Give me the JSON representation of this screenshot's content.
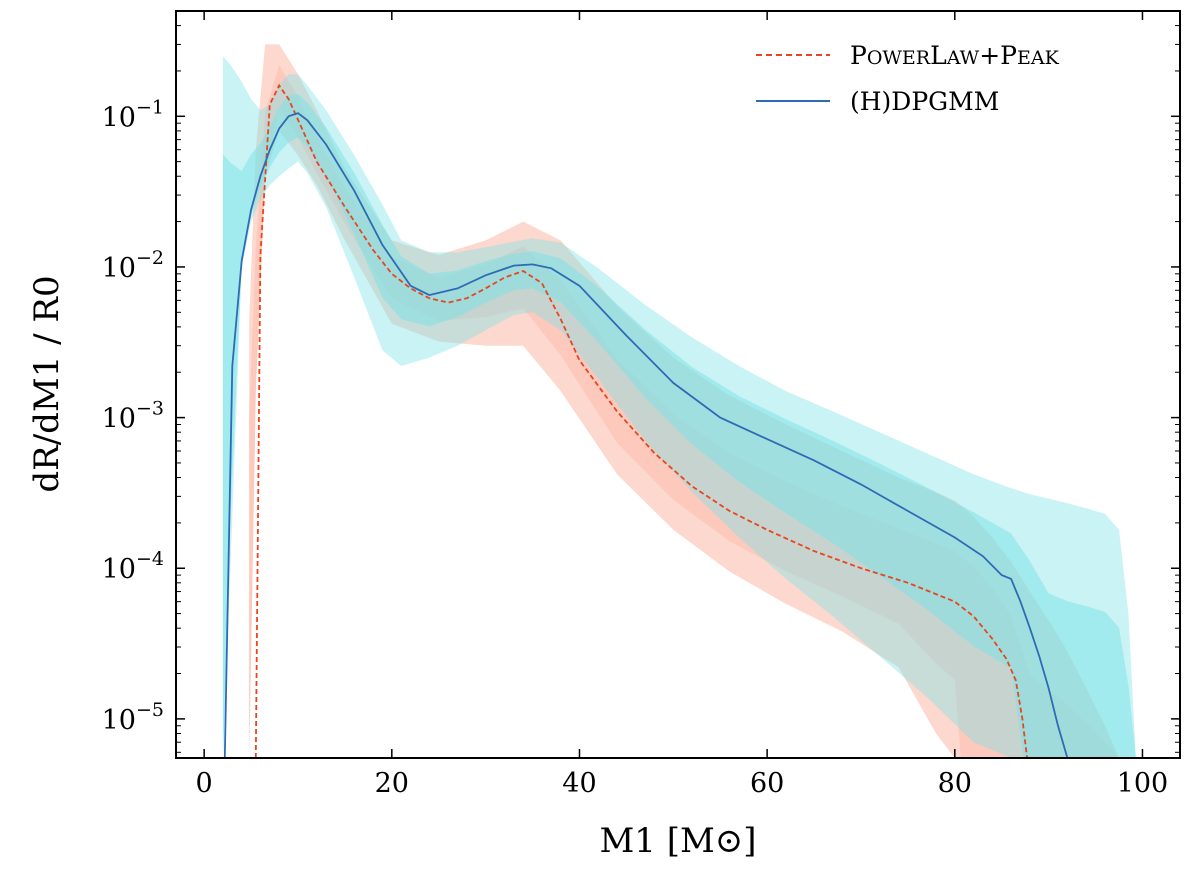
{
  "chart_data": {
    "type": "line",
    "title": "",
    "xlabel": "M1 [M⊙]",
    "ylabel": "dR/dM1 / R0",
    "x_scale": "linear",
    "y_scale": "log",
    "xlim": [
      -3,
      104
    ],
    "ylim": [
      5.5e-06,
      0.5
    ],
    "xticks": [
      0,
      20,
      40,
      60,
      80,
      100
    ],
    "xtick_labels": [
      "0",
      "20",
      "40",
      "60",
      "80",
      "100"
    ],
    "yticks": [
      1e-05,
      0.0001,
      0.001,
      0.01,
      0.1
    ],
    "ytick_labels": [
      {
        "base": "10",
        "exp": "−5"
      },
      {
        "base": "10",
        "exp": "−4"
      },
      {
        "base": "10",
        "exp": "−3"
      },
      {
        "base": "10",
        "exp": "−2"
      },
      {
        "base": "10",
        "exp": "−1"
      }
    ],
    "legend": {
      "location": "top-right",
      "entries": [
        {
          "label_parts": [
            {
              "t": "P",
              "sc": false
            },
            {
              "t": "OWER",
              "sc": true
            },
            {
              "t": "L",
              "sc": false
            },
            {
              "t": "AW",
              "sc": true
            },
            {
              "t": "+P",
              "sc": false
            },
            {
              "t": "EAK",
              "sc": true
            }
          ],
          "color": "#e8451f",
          "dash": true
        },
        {
          "label_parts": [
            {
              "t": "(H)DPGMM",
              "sc": false
            }
          ],
          "color": "#2e6bb5",
          "dash": false
        }
      ]
    },
    "series": [
      {
        "name": "PowerLaw+Peak",
        "color": "#e8451f",
        "dash": "dashed",
        "band_color": "#fbb8a6",
        "x": [
          5.5,
          6,
          7,
          8,
          9,
          10,
          12,
          15,
          18,
          20,
          22,
          24,
          26,
          28,
          30,
          32,
          34,
          36,
          38,
          40,
          44,
          48,
          52,
          56,
          60,
          65,
          70,
          75,
          80,
          82,
          84,
          85.5,
          86.5,
          87.2,
          87.7
        ],
        "median": [
          5.5e-06,
          0.012,
          0.12,
          0.16,
          0.13,
          0.095,
          0.05,
          0.025,
          0.013,
          0.009,
          0.0072,
          0.0062,
          0.0058,
          0.0062,
          0.0072,
          0.0085,
          0.0094,
          0.0078,
          0.0045,
          0.0024,
          0.0011,
          0.00058,
          0.00035,
          0.00024,
          0.00018,
          0.00013,
          0.0001,
          8e-05,
          6e-05,
          4.8e-05,
          3.4e-05,
          2.5e-05,
          1.8e-05,
          1e-05,
          5.5e-06
        ],
        "band90": {
          "x": [
            4.8,
            5.5,
            6.5,
            8,
            10,
            12,
            15,
            20,
            25,
            30,
            34,
            38,
            44,
            50,
            56,
            62,
            68,
            74,
            78,
            80,
            81,
            82,
            84,
            86,
            88,
            90,
            92,
            94,
            96,
            97.5
          ],
          "lower": [
            5.5e-06,
            0.0015,
            0.04,
            0.08,
            0.055,
            0.035,
            0.015,
            0.0042,
            0.0032,
            0.003,
            0.003,
            0.0015,
            0.00042,
            0.00018,
            9.5e-05,
            5.8e-05,
            3.8e-05,
            2.2e-05,
            8e-06,
            5.5e-06,
            null,
            null,
            null,
            null,
            null,
            null,
            null,
            null,
            null,
            null
          ],
          "upper": [
            0.0045,
            0.06,
            0.3,
            0.3,
            0.19,
            0.11,
            0.045,
            0.015,
            0.012,
            0.015,
            0.02,
            0.015,
            0.0055,
            0.0025,
            0.0014,
            0.0009,
            0.0006,
            0.0004,
            0.00032,
            0.00028,
            0.00025,
            0.00022,
            0.00016,
            0.00011,
            7e-05,
            4.5e-05,
            2.8e-05,
            1.6e-05,
            9e-06,
            5.5e-06
          ]
        }
      },
      {
        "name": "(H)DPGMM",
        "color": "#2e6bb5",
        "dash": "solid",
        "band_color": "#7fe2e6",
        "x": [
          2.2,
          3,
          4,
          5,
          6,
          7,
          8,
          9,
          10,
          11,
          13,
          16,
          19,
          22,
          24,
          27,
          30,
          33,
          35,
          37,
          40,
          45,
          50,
          55,
          60,
          65,
          70,
          75,
          80,
          83,
          85,
          86,
          87,
          88,
          89,
          90,
          91,
          92
        ],
        "median": [
          5.5e-06,
          0.0022,
          0.011,
          0.024,
          0.04,
          0.06,
          0.083,
          0.1,
          0.105,
          0.094,
          0.065,
          0.032,
          0.014,
          0.0075,
          0.0065,
          0.0072,
          0.0088,
          0.0102,
          0.0104,
          0.0098,
          0.0075,
          0.0035,
          0.0017,
          0.001,
          0.00072,
          0.00052,
          0.00036,
          0.00024,
          0.00016,
          0.00012,
          9e-05,
          8.5e-05,
          6e-05,
          4e-05,
          2.6e-05,
          1.6e-05,
          9e-06,
          5.5e-06
        ],
        "band90": {
          "x": [
            2,
            2.8,
            4,
            5,
            6,
            7,
            8,
            9,
            10,
            11,
            13,
            16,
            19,
            21,
            24,
            27,
            30,
            33,
            35,
            38,
            42,
            47,
            52,
            57,
            62,
            67,
            72,
            77,
            82,
            86,
            88,
            90,
            92,
            94,
            96,
            97.5,
            98.5,
            99.3
          ],
          "lower": [
            5.5e-06,
            0.0001,
            0.01,
            0.02,
            0.028,
            0.035,
            0.04,
            0.045,
            0.05,
            0.042,
            0.025,
            0.0085,
            0.0028,
            0.0022,
            0.0025,
            0.003,
            0.0038,
            0.0048,
            0.005,
            0.0038,
            0.0018,
            0.0007,
            0.00032,
            0.00016,
            8.5e-05,
            4.8e-05,
            2.6e-05,
            1.4e-05,
            7e-06,
            5.5e-06,
            null,
            null,
            null,
            null,
            null,
            null,
            null,
            null
          ],
          "upper": [
            0.25,
            0.22,
            0.17,
            0.13,
            0.11,
            0.12,
            0.16,
            0.19,
            0.19,
            0.16,
            0.11,
            0.055,
            0.026,
            0.015,
            0.0125,
            0.0125,
            0.0135,
            0.0147,
            0.0155,
            0.0145,
            0.0098,
            0.0056,
            0.0034,
            0.0022,
            0.0015,
            0.0011,
            0.0008,
            0.00058,
            0.00042,
            0.00034,
            0.00031,
            0.00029,
            0.00027,
            0.00025,
            0.00023,
            0.00018,
            5e-05,
            5.5e-06
          ]
        }
      }
    ]
  }
}
